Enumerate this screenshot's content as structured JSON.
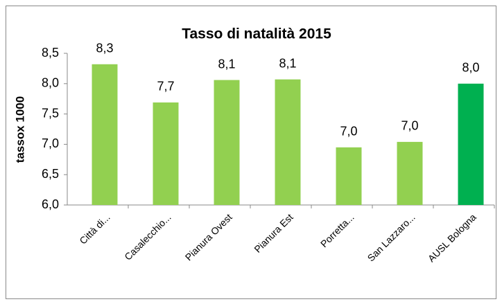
{
  "chart_data": {
    "type": "bar",
    "title": "Tasso di natalità 2015",
    "y_label": "tassox 1000",
    "categories": [
      "Città di...",
      "Casalecchio...",
      "Pianura Ovest",
      "Pianura Est",
      "Porretta...",
      "San Lazzaro...",
      "AUSL Bologna"
    ],
    "values": [
      8.32,
      7.69,
      8.06,
      8.07,
      6.95,
      7.04,
      8.0
    ],
    "value_labels": [
      "8,3",
      "7,7",
      "8,1",
      "8,1",
      "7,0",
      "7,0",
      "8,0"
    ],
    "colors": [
      "#92d050",
      "#92d050",
      "#92d050",
      "#92d050",
      "#92d050",
      "#92d050",
      "#00b050"
    ],
    "ylim": [
      6.0,
      8.5
    ],
    "yticks": [
      {
        "value": 6.0,
        "label": "6,0"
      },
      {
        "value": 6.5,
        "label": "6,5"
      },
      {
        "value": 7.0,
        "label": "7,0"
      },
      {
        "value": 7.5,
        "label": "7,5"
      },
      {
        "value": 8.0,
        "label": "8,0"
      },
      {
        "value": 8.5,
        "label": "8,5"
      }
    ],
    "grid": false
  }
}
